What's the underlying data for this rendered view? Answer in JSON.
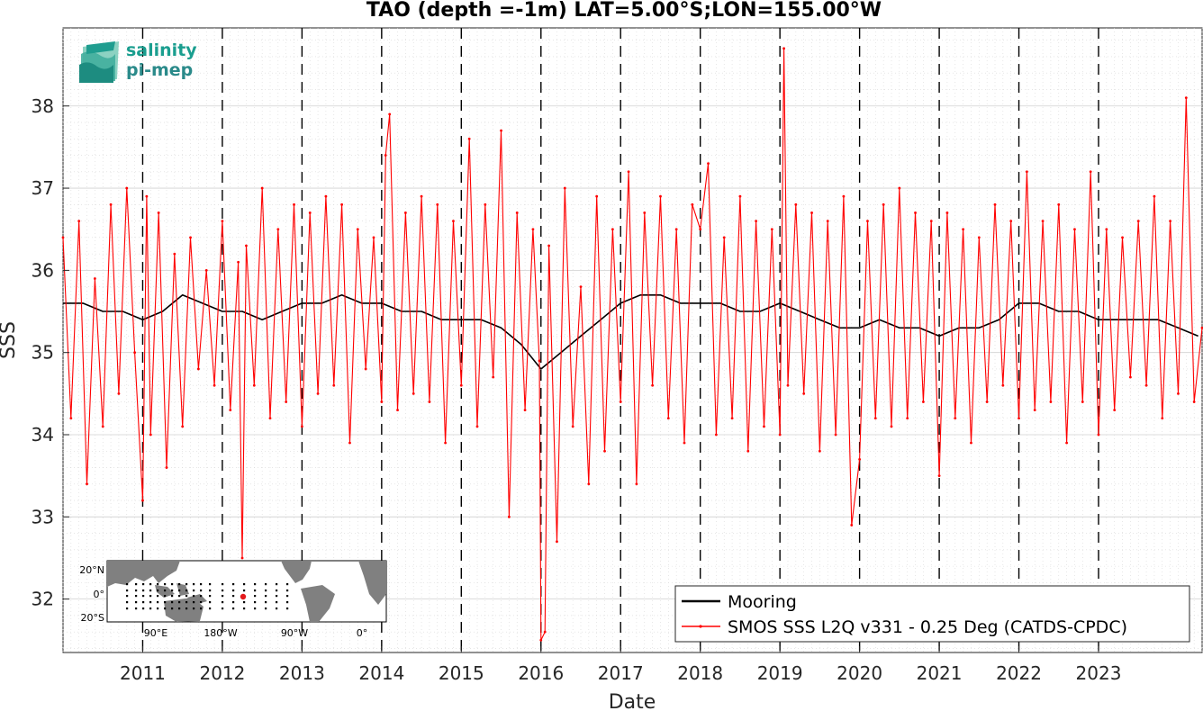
{
  "chart_data": {
    "type": "line",
    "title": "TAO (depth =-1m) LAT=5.00°S;LON=155.00°W",
    "xlabel": "Date",
    "ylabel": "SSS",
    "xlim": [
      2010.0,
      2024.3
    ],
    "ylim": [
      31.35,
      38.95
    ],
    "x_ticks": [
      2011,
      2012,
      2013,
      2014,
      2015,
      2016,
      2017,
      2018,
      2019,
      2020,
      2021,
      2022,
      2023
    ],
    "y_ticks": [
      32,
      33,
      34,
      35,
      36,
      37,
      38
    ],
    "grid": true,
    "year_dividers": [
      2011,
      2012,
      2013,
      2014,
      2015,
      2016,
      2017,
      2018,
      2019,
      2020,
      2021,
      2022,
      2023
    ],
    "legend": {
      "placement": "bottom-right",
      "entries": [
        {
          "label": "Mooring",
          "color": "#000000"
        },
        {
          "label": "SMOS SSS L2Q v331 - 0.25 Deg (CATDS-CPDC)",
          "color": "#ff0000"
        }
      ]
    },
    "series": [
      {
        "name": "Mooring",
        "color": "#000000",
        "x": [
          2010.0,
          2010.25,
          2010.5,
          2010.75,
          2011.0,
          2011.25,
          2011.5,
          2011.75,
          2012.0,
          2012.25,
          2012.5,
          2012.75,
          2013.0,
          2013.25,
          2013.5,
          2013.75,
          2014.0,
          2014.25,
          2014.5,
          2014.75,
          2015.0,
          2015.25,
          2015.5,
          2015.75,
          2016.0,
          2016.25,
          2016.5,
          2016.75,
          2017.0,
          2017.25,
          2017.5,
          2017.75,
          2018.0,
          2018.25,
          2018.5,
          2018.75,
          2019.0,
          2019.25,
          2019.5,
          2019.75,
          2020.0,
          2020.25,
          2020.5,
          2020.75,
          2021.0,
          2021.25,
          2021.5,
          2021.75,
          2022.0,
          2022.25,
          2022.5,
          2022.75,
          2023.0,
          2023.25,
          2023.5,
          2023.75,
          2024.0,
          2024.25
        ],
        "values": [
          35.6,
          35.6,
          35.5,
          35.5,
          35.4,
          35.5,
          35.7,
          35.6,
          35.5,
          35.5,
          35.4,
          35.5,
          35.6,
          35.6,
          35.7,
          35.6,
          35.6,
          35.5,
          35.5,
          35.4,
          35.4,
          35.4,
          35.3,
          35.1,
          34.8,
          35.0,
          35.2,
          35.4,
          35.6,
          35.7,
          35.7,
          35.6,
          35.6,
          35.6,
          35.5,
          35.5,
          35.6,
          35.5,
          35.4,
          35.3,
          35.3,
          35.4,
          35.3,
          35.3,
          35.2,
          35.3,
          35.3,
          35.4,
          35.6,
          35.6,
          35.5,
          35.5,
          35.4,
          35.4,
          35.4,
          35.4,
          35.3,
          35.2
        ]
      },
      {
        "name": "SMOS SSS L2Q v331 - 0.25 Deg (CATDS-CPDC)",
        "color": "#ff0000",
        "x": [
          2010.0,
          2010.1,
          2010.2,
          2010.3,
          2010.4,
          2010.5,
          2010.6,
          2010.7,
          2010.8,
          2010.9,
          2011.0,
          2011.05,
          2011.1,
          2011.2,
          2011.3,
          2011.4,
          2011.5,
          2011.6,
          2011.7,
          2011.8,
          2011.9,
          2012.0,
          2012.1,
          2012.2,
          2012.25,
          2012.3,
          2012.4,
          2012.5,
          2012.6,
          2012.7,
          2012.8,
          2012.9,
          2013.0,
          2013.1,
          2013.2,
          2013.3,
          2013.4,
          2013.5,
          2013.6,
          2013.7,
          2013.8,
          2013.9,
          2014.0,
          2014.05,
          2014.1,
          2014.2,
          2014.3,
          2014.4,
          2014.5,
          2014.6,
          2014.7,
          2014.8,
          2014.9,
          2015.0,
          2015.1,
          2015.2,
          2015.3,
          2015.4,
          2015.5,
          2015.6,
          2015.7,
          2015.8,
          2015.9,
          2015.98,
          2016.0,
          2016.05,
          2016.1,
          2016.2,
          2016.3,
          2016.4,
          2016.5,
          2016.6,
          2016.7,
          2016.8,
          2016.9,
          2017.0,
          2017.1,
          2017.2,
          2017.3,
          2017.4,
          2017.5,
          2017.6,
          2017.7,
          2017.8,
          2017.9,
          2018.0,
          2018.1,
          2018.2,
          2018.3,
          2018.4,
          2018.5,
          2018.6,
          2018.7,
          2018.8,
          2018.9,
          2019.0,
          2019.05,
          2019.1,
          2019.2,
          2019.3,
          2019.4,
          2019.5,
          2019.6,
          2019.7,
          2019.8,
          2019.9,
          2020.0,
          2020.1,
          2020.2,
          2020.3,
          2020.4,
          2020.5,
          2020.6,
          2020.7,
          2020.8,
          2020.9,
          2021.0,
          2021.1,
          2021.2,
          2021.3,
          2021.4,
          2021.5,
          2021.6,
          2021.7,
          2021.8,
          2021.9,
          2022.0,
          2022.1,
          2022.2,
          2022.3,
          2022.4,
          2022.5,
          2022.6,
          2022.7,
          2022.8,
          2022.9,
          2023.0,
          2023.1,
          2023.2,
          2023.3,
          2023.4,
          2023.5,
          2023.6,
          2023.7,
          2023.8,
          2023.9,
          2024.0,
          2024.1,
          2024.2,
          2024.3
        ],
        "values": [
          36.4,
          34.2,
          36.6,
          33.4,
          35.9,
          34.1,
          36.8,
          34.5,
          37.0,
          35.0,
          33.2,
          36.9,
          34.0,
          36.7,
          33.6,
          36.2,
          34.1,
          36.4,
          34.8,
          36.0,
          34.6,
          36.6,
          34.3,
          36.1,
          32.5,
          36.3,
          34.6,
          37.0,
          34.2,
          36.5,
          34.4,
          36.8,
          34.1,
          36.7,
          34.5,
          36.9,
          34.6,
          36.8,
          33.9,
          36.5,
          34.8,
          36.4,
          34.4,
          37.4,
          37.9,
          34.3,
          36.7,
          34.5,
          36.9,
          34.4,
          36.8,
          33.9,
          36.6,
          34.6,
          37.6,
          34.1,
          36.8,
          34.7,
          37.7,
          33.0,
          36.7,
          34.3,
          36.5,
          34.9,
          31.5,
          31.6,
          36.3,
          32.7,
          37.0,
          34.1,
          35.8,
          33.4,
          36.9,
          33.8,
          36.5,
          34.4,
          37.2,
          33.4,
          36.7,
          34.6,
          36.9,
          34.2,
          36.5,
          33.9,
          36.8,
          36.5,
          37.3,
          34.0,
          36.4,
          34.2,
          36.9,
          33.8,
          36.6,
          34.1,
          36.5,
          34.0,
          38.7,
          34.6,
          36.8,
          34.5,
          36.7,
          33.8,
          36.6,
          34.0,
          36.9,
          32.9,
          33.7,
          36.6,
          34.2,
          36.8,
          34.1,
          37.0,
          34.2,
          36.7,
          34.4,
          36.6,
          33.5,
          36.7,
          34.2,
          36.5,
          33.9,
          36.4,
          34.4,
          36.8,
          34.6,
          36.6,
          34.2,
          37.2,
          34.3,
          36.6,
          34.4,
          36.8,
          33.9,
          36.5,
          34.4,
          37.2,
          34.0,
          36.5,
          34.3,
          36.4,
          34.7,
          36.6,
          34.6,
          36.9,
          34.2,
          36.6,
          34.5,
          38.1,
          34.4,
          35.3
        ]
      }
    ]
  },
  "inset_map": {
    "lat_labels": [
      "20°N",
      "0°",
      "20°S"
    ],
    "lon_labels": [
      "90°E",
      "180°W",
      "90°W",
      "0°"
    ],
    "land_color": "#808080",
    "ocean_color": "#ffffff",
    "station_marker_color": "#e41a1c"
  },
  "logo": {
    "line1": "salinity",
    "line2": "pi-mep",
    "color1": "#1a9e8f",
    "color2": "#2a8a8a"
  }
}
